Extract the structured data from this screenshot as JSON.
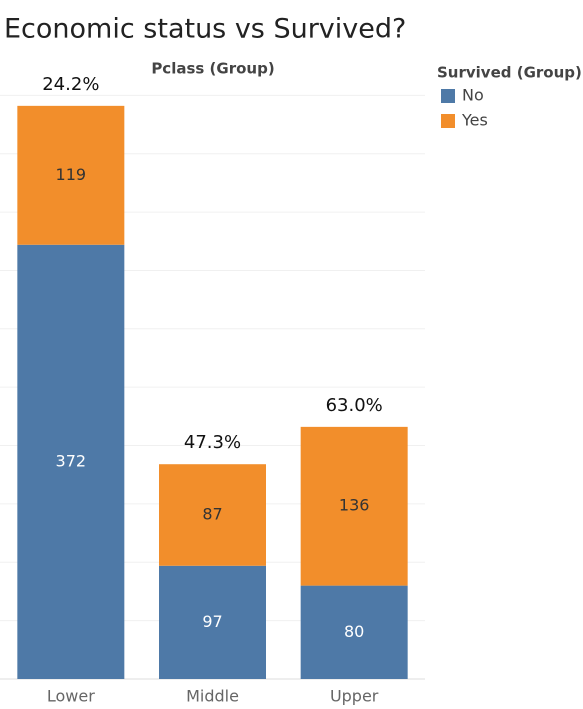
{
  "chart_data": {
    "type": "stacked_bar",
    "title": "Economic status vs Survived?",
    "header": "Pclass (Group)",
    "legend_title": "Survived (Group)",
    "categories": [
      "Lower",
      "Middle",
      "Upper"
    ],
    "series": [
      {
        "name": "No",
        "color": "#4e79a7",
        "values": [
          372,
          97,
          80
        ]
      },
      {
        "name": "Yes",
        "color": "#f28e2b",
        "values": [
          119,
          87,
          136
        ]
      }
    ],
    "survival_rate": {
      "values": [
        24.2,
        47.3,
        63.0
      ],
      "value_labels": [
        "24.2%",
        "47.3%",
        "63.0%"
      ]
    },
    "ylim": [
      0,
      520
    ],
    "yticks": [
      0,
      50,
      100,
      150,
      200,
      250,
      300,
      350,
      400,
      450,
      500
    ],
    "grid": true
  }
}
